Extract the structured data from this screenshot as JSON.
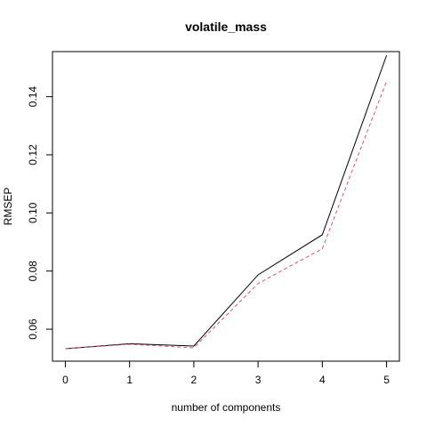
{
  "chart_data": {
    "type": "line",
    "title": "volatile_mass",
    "xlabel": "number of components",
    "ylabel": "RMSEP",
    "x": [
      0,
      1,
      2,
      3,
      4,
      5
    ],
    "xlim": [
      -0.2,
      5.2
    ],
    "ylim": [
      0.049,
      0.1555
    ],
    "x_ticks": [
      "0",
      "1",
      "2",
      "3",
      "4",
      "5"
    ],
    "y_ticks": [
      "0.06",
      "0.08",
      "0.10",
      "0.12",
      "0.14"
    ],
    "y_tick_values": [
      0.06,
      0.08,
      0.1,
      0.12,
      0.14
    ],
    "grid": false,
    "legend": "none",
    "series": [
      {
        "values": [
          0.0533,
          0.055,
          0.0542,
          0.0787,
          0.0925,
          0.1542
        ],
        "color": "#000000",
        "style": "solid"
      },
      {
        "values": [
          0.0533,
          0.0548,
          0.0536,
          0.0757,
          0.0877,
          0.1453
        ],
        "color": "#DF536B",
        "style": "dashed"
      }
    ]
  }
}
